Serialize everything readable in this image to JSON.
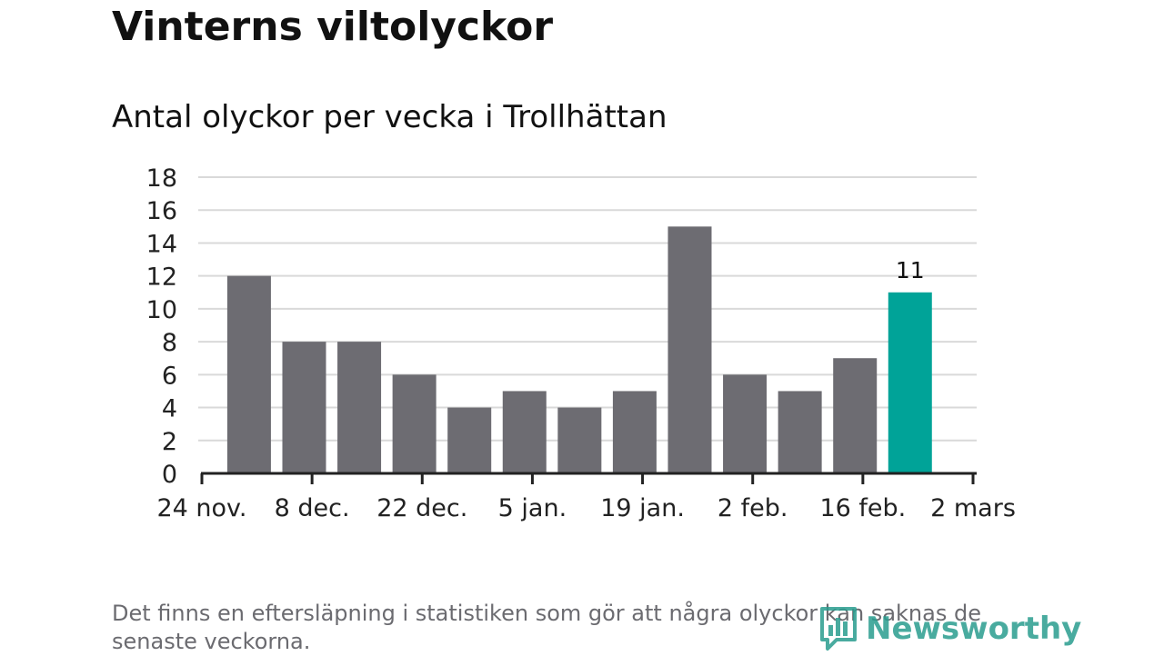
{
  "title": "Vinterns viltolyckor",
  "subtitle": "Antal olyckor per vecka i Trollhättan",
  "footnote": "Det finns en eftersläpning i statistiken som gör att några olyckor kan saknas de senaste veckorna.",
  "logo": {
    "text": "Newsworthy",
    "icon": "bar-chart-bubble-icon"
  },
  "colors": {
    "bar": "#6d6c72",
    "highlight": "#00a398",
    "grid": "#d9d9d9",
    "axis": "#222222",
    "logo": "#2a9d8f"
  },
  "chart_data": {
    "type": "bar",
    "x": [
      "2020-11-30",
      "2020-12-07",
      "2020-12-14",
      "2020-12-21",
      "2020-12-28",
      "2021-01-04",
      "2021-01-11",
      "2021-01-18",
      "2021-01-25",
      "2021-02-01",
      "2021-02-08",
      "2021-02-15",
      "2021-02-22"
    ],
    "values": [
      12,
      8,
      8,
      6,
      4,
      5,
      4,
      5,
      15,
      6,
      5,
      7,
      11
    ],
    "highlight_index": 12,
    "data_labels": [
      {
        "index": 12,
        "text": "11"
      }
    ],
    "x_ticks": [
      "24 nov.",
      "8 dec.",
      "22 dec.",
      "5 jan.",
      "19 jan.",
      "2 feb.",
      "16 feb.",
      "2 mars"
    ],
    "y_ticks": [
      "0",
      "2",
      "4",
      "6",
      "8",
      "10",
      "12",
      "14",
      "16",
      "18"
    ],
    "ylim": [
      0,
      18
    ],
    "grid": true,
    "legend": "none"
  }
}
